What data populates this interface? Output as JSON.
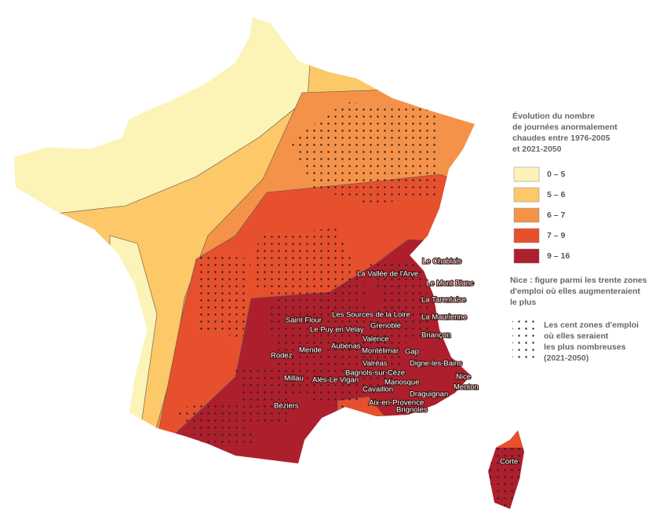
{
  "legend": {
    "title": [
      "Évolution du nombre",
      "de journées anormalement",
      "chaudes entre 1976-2005",
      "et 2021-2050"
    ],
    "classes": [
      {
        "label": "0 – 5",
        "color": "#fbf4b6"
      },
      {
        "label": "5 – 6",
        "color": "#fcc868"
      },
      {
        "label": "6 – 7",
        "color": "#f5924a"
      },
      {
        "label": "7 – 9",
        "color": "#e6502d"
      },
      {
        "label": "9 – 16",
        "color": "#ad1f2d"
      }
    ],
    "note": [
      "Nice : figure parmi les trente zones",
      "d'emploi où elles augmenteraient",
      "le plus"
    ],
    "dots_note": [
      "Les cent zones d'emploi",
      "où elles seraient",
      "les plus nombreuses",
      "(2021-2050)"
    ]
  },
  "places": [
    "Le Chablais",
    "La Vallée de l'Arve",
    "Le Mont Blanc",
    "La Tarentaise",
    "Saint Flour",
    "Les Sources de la Loire",
    "La Maurienne",
    "Le Puy en Velay",
    "Grenoble",
    "Briançon",
    "Valence",
    "Aubenas",
    "Montélimar",
    "Gap",
    "Mende",
    "Rodez",
    "Valréas",
    "Digne-les-Bains",
    "Bagnols-sur-Cèze",
    "Millau",
    "Alès-Le Vigan",
    "Manosque",
    "Nice",
    "Menton",
    "Cavaillon",
    "Draguignan",
    "Aix-en-Provence",
    "Béziers",
    "Brignoles",
    "Corte"
  ]
}
